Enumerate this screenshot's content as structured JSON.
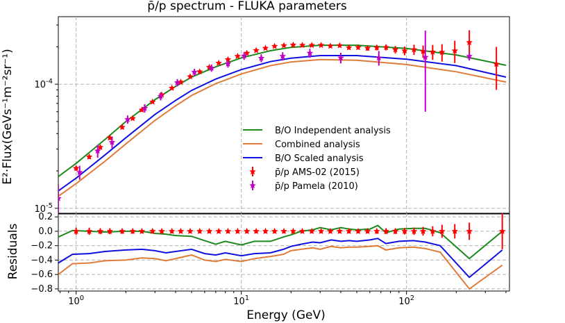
{
  "chart_data": {
    "type": "line",
    "title": "p̄/p spectrum - FLUKA parameters",
    "xlabel": "Energy (GeV)",
    "x_scale": "log",
    "xlim": [
      0.78,
      420
    ],
    "x_ticks": [
      {
        "value": 1,
        "label": "10^0"
      },
      {
        "value": 10,
        "label": "10^1"
      },
      {
        "value": 100,
        "label": "10^2"
      }
    ],
    "top": {
      "ylabel": "E²·Flux(GeVs⁻¹m⁻²sr⁻¹)",
      "y_scale": "log",
      "ylim": [
        9e-06,
        0.00035
      ],
      "y_ticks": [
        {
          "value": 1e-05,
          "label": "10^-5"
        },
        {
          "value": 0.0001,
          "label": "10^-4"
        }
      ],
      "series": [
        {
          "name": "B/O Independent analysis",
          "color": "#1a8a1a",
          "x": [
            0.78,
            1,
            1.5,
            2,
            3,
            4,
            5,
            7,
            10,
            15,
            20,
            30,
            50,
            100,
            200,
            400
          ],
          "y": [
            1.8e-05,
            2.3e-05,
            3.6e-05,
            5e-05,
            7.5e-05,
            9.6e-05,
            0.000114,
            0.000138,
            0.000163,
            0.000186,
            0.000198,
            0.000206,
            0.000206,
            0.000194,
            0.000172,
            0.000142
          ]
        },
        {
          "name": "Combined analysis",
          "color": "#e07b39",
          "x": [
            0.78,
            1,
            1.5,
            2,
            3,
            4,
            5,
            7,
            10,
            15,
            20,
            30,
            50,
            100,
            200,
            400
          ],
          "y": [
            1.25e-05,
            1.58e-05,
            2.4e-05,
            3.3e-05,
            5.1e-05,
            6.7e-05,
            8.1e-05,
            0.000101,
            0.000121,
            0.000141,
            0.000151,
            0.000158,
            0.000156,
            0.000144,
            0.000126,
            0.000104
          ]
        },
        {
          "name": "B/O Scaled analysis",
          "color": "#1010e0",
          "x": [
            0.78,
            1,
            1.5,
            2,
            3,
            4,
            5,
            7,
            10,
            15,
            20,
            30,
            50,
            100,
            200,
            400
          ],
          "y": [
            1.38e-05,
            1.75e-05,
            2.7e-05,
            3.7e-05,
            5.7e-05,
            7.4e-05,
            8.9e-05,
            0.00011,
            0.000131,
            0.000152,
            0.000162,
            0.00017,
            0.00017,
            0.000159,
            0.000141,
            0.000114
          ]
        }
      ],
      "data": [
        {
          "name": "p̄/p AMS-02 (2015)",
          "color": "#ff0000",
          "x": [
            1.0,
            1.2,
            1.4,
            1.6,
            1.9,
            2.2,
            2.5,
            2.9,
            3.3,
            3.8,
            4.3,
            4.9,
            5.6,
            6.4,
            7.3,
            8.3,
            9.5,
            10.8,
            12.3,
            14.0,
            15.9,
            18.1,
            20.6,
            23.4,
            26.7,
            30.4,
            34.6,
            39.4,
            44.8,
            51.0,
            58.1,
            66.1,
            75.2,
            85.6,
            97.4,
            111,
            126,
            144,
            164,
            196,
            240,
            350
          ],
          "y": [
            2.1e-05,
            2.6e-05,
            3.1e-05,
            3.7e-05,
            4.5e-05,
            5.3e-05,
            6.2e-05,
            7.2e-05,
            8.2e-05,
            9.3e-05,
            0.000104,
            0.000115,
            0.000126,
            0.000137,
            0.000148,
            0.000158,
            0.000168,
            0.000178,
            0.000187,
            0.000195,
            0.000202,
            0.000205,
            0.000207,
            0.000206,
            0.000206,
            0.000206,
            0.000203,
            0.000205,
            0.000197,
            0.000198,
            0.000195,
            0.000197,
            0.000198,
            0.00019,
            0.000186,
            0.00019,
            0.000184,
            0.000182,
            0.000181,
            0.000186,
            0.000217,
            0.000145
          ],
          "yerr": [
            1e-06,
            1.1e-06,
            1.2e-06,
            1.4e-06,
            1.6e-06,
            1.8e-06,
            2e-06,
            2.2e-06,
            2.4e-06,
            2.7e-06,
            3e-06,
            3.3e-06,
            3.6e-06,
            4e-06,
            4.2e-06,
            4.5e-06,
            4.8e-06,
            5e-06,
            5.3e-06,
            5.6e-06,
            6e-06,
            6e-06,
            6e-06,
            6e-06,
            6e-06,
            6e-06,
            6e-06,
            7e-06,
            7e-06,
            8e-06,
            9e-06,
            1e-05,
            1.1e-05,
            1.3e-05,
            1.5e-05,
            1.8e-05,
            2.1e-05,
            2.5e-05,
            2.9e-05,
            3.8e-05,
            5.5e-05,
            5.5e-05
          ]
        },
        {
          "name": "p̄/p Pamela (2010)",
          "color": "#c000c0",
          "x": [
            0.78,
            1.05,
            1.35,
            1.65,
            2.05,
            2.6,
            3.25,
            4.1,
            5.2,
            6.6,
            8.3,
            10.4,
            13.2,
            17.8,
            26.0,
            40.0,
            68.0,
            130.0,
            240.0
          ],
          "y": [
            1.2e-05,
            1.95e-05,
            2.9e-05,
            3.4e-05,
            5.2e-05,
            6.4e-05,
            8e-05,
            0.000103,
            0.000125,
            0.000135,
            0.000146,
            0.000169,
            0.000162,
            0.000168,
            0.000178,
            0.000163,
            0.000163,
            0.000165,
            0.000168
          ],
          "yerr": [
            3.5e-06,
            2.5e-06,
            3.5e-06,
            3.5e-06,
            4e-06,
            5e-06,
            6e-06,
            7e-06,
            8e-06,
            9e-06,
            1e-05,
            1.2e-05,
            1.2e-05,
            1.3e-05,
            1.5e-05,
            1.6e-05,
            2.2e-05,
            0.000105,
            1.3e-05
          ]
        }
      ]
    },
    "bottom": {
      "ylabel": "Residuals",
      "ylim": [
        -0.83,
        0.25
      ],
      "y_ticks": [
        {
          "value": 0.2,
          "label": "0.2"
        },
        {
          "value": 0.0,
          "label": "0.0"
        },
        {
          "value": -0.2,
          "label": "−0.2"
        },
        {
          "value": -0.4,
          "label": "−0.4"
        },
        {
          "value": -0.6,
          "label": "−0.6"
        },
        {
          "value": -0.8,
          "label": "−0.8"
        }
      ],
      "series": [
        {
          "name": "B/O Independent analysis",
          "color": "#1a8a1a",
          "x": [
            0.78,
            0.95,
            1.2,
            1.5,
            2.0,
            2.5,
            3.0,
            3.5,
            4.0,
            5.0,
            6.0,
            7.0,
            8.0,
            10.0,
            12.0,
            15.0,
            18.0,
            20.0,
            23.0,
            27.0,
            30.0,
            35.0,
            40.0,
            45.0,
            50.0,
            60.0,
            67.0,
            75.0,
            90.0,
            110.0,
            130.0,
            160.0,
            240.0,
            380.0
          ],
          "y": [
            -0.08,
            0.01,
            0.0,
            -0.01,
            0.0,
            0.0,
            -0.03,
            -0.04,
            -0.06,
            -0.07,
            -0.13,
            -0.18,
            -0.14,
            -0.19,
            -0.14,
            -0.14,
            -0.08,
            -0.05,
            0.0,
            0.02,
            0.05,
            0.02,
            0.05,
            0.03,
            0.02,
            0.03,
            0.08,
            -0.02,
            0.03,
            0.04,
            0.04,
            -0.02,
            -0.38,
            0.0
          ]
        },
        {
          "name": "Combined analysis",
          "color": "#e07b39",
          "x": [
            0.78,
            0.95,
            1.2,
            1.5,
            2.0,
            2.5,
            3.0,
            3.5,
            4.0,
            5.0,
            6.0,
            7.0,
            8.0,
            10.0,
            12.0,
            15.0,
            18.0,
            20.0,
            23.0,
            27.0,
            30.0,
            35.0,
            40.0,
            45.0,
            50.0,
            60.0,
            67.0,
            75.0,
            90.0,
            110.0,
            130.0,
            160.0,
            240.0,
            380.0
          ],
          "y": [
            -0.6,
            -0.45,
            -0.44,
            -0.41,
            -0.4,
            -0.37,
            -0.38,
            -0.41,
            -0.38,
            -0.33,
            -0.4,
            -0.42,
            -0.39,
            -0.42,
            -0.38,
            -0.35,
            -0.32,
            -0.27,
            -0.25,
            -0.23,
            -0.25,
            -0.21,
            -0.23,
            -0.22,
            -0.22,
            -0.21,
            -0.2,
            -0.26,
            -0.23,
            -0.22,
            -0.24,
            -0.29,
            -0.8,
            -0.47
          ]
        },
        {
          "name": "B/O Scaled analysis",
          "color": "#1010e0",
          "x": [
            0.78,
            0.95,
            1.2,
            1.5,
            2.0,
            2.5,
            3.0,
            3.5,
            4.0,
            5.0,
            6.0,
            7.0,
            8.0,
            10.0,
            12.0,
            15.0,
            18.0,
            20.0,
            23.0,
            27.0,
            30.0,
            35.0,
            40.0,
            45.0,
            50.0,
            60.0,
            67.0,
            75.0,
            90.0,
            110.0,
            130.0,
            160.0,
            240.0,
            380.0
          ],
          "y": [
            -0.44,
            -0.32,
            -0.31,
            -0.28,
            -0.26,
            -0.25,
            -0.27,
            -0.3,
            -0.28,
            -0.25,
            -0.31,
            -0.33,
            -0.3,
            -0.34,
            -0.31,
            -0.3,
            -0.25,
            -0.21,
            -0.18,
            -0.15,
            -0.16,
            -0.12,
            -0.14,
            -0.13,
            -0.14,
            -0.12,
            -0.1,
            -0.17,
            -0.14,
            -0.13,
            -0.15,
            -0.2,
            -0.64,
            -0.26
          ]
        }
      ],
      "data": [
        {
          "name": "p̄/p AMS-02 (2015)",
          "color": "#ff0000",
          "x": [
            1.0,
            1.2,
            1.4,
            1.6,
            1.9,
            2.2,
            2.5,
            2.9,
            3.3,
            3.8,
            4.3,
            4.9,
            5.6,
            6.4,
            7.3,
            8.3,
            9.5,
            10.8,
            12.3,
            14.0,
            15.9,
            18.1,
            20.6,
            23.4,
            26.7,
            30.4,
            34.6,
            39.4,
            44.8,
            51.0,
            58.1,
            66.1,
            75.2,
            85.6,
            97.4,
            111,
            126,
            144,
            164,
            196,
            240,
            380
          ],
          "y": [
            0.0,
            0.0,
            0.0,
            0.0,
            0.0,
            0.0,
            0.0,
            0.0,
            0.0,
            0.0,
            0.0,
            0.0,
            0.0,
            0.0,
            0.0,
            0.0,
            0.0,
            0.0,
            0.0,
            0.0,
            0.0,
            0.0,
            0.0,
            0.0,
            0.0,
            0.0,
            0.0,
            0.0,
            0.0,
            0.0,
            0.0,
            0.0,
            0.0,
            0.0,
            0.0,
            0.0,
            0.0,
            0.0,
            0.0,
            0.0,
            0.0,
            0.0
          ],
          "yerr": [
            0.05,
            0.05,
            0.04,
            0.04,
            0.035,
            0.035,
            0.03,
            0.03,
            0.03,
            0.03,
            0.028,
            0.028,
            0.028,
            0.028,
            0.028,
            0.028,
            0.028,
            0.028,
            0.028,
            0.028,
            0.028,
            0.028,
            0.028,
            0.028,
            0.028,
            0.028,
            0.03,
            0.03,
            0.03,
            0.03,
            0.03,
            0.035,
            0.04,
            0.04,
            0.045,
            0.05,
            0.06,
            0.07,
            0.09,
            0.1,
            0.12,
            0.25
          ]
        }
      ]
    },
    "legend": {
      "placement": "center-right",
      "entries": [
        {
          "label": "B/O Independent analysis",
          "color": "#1a8a1a",
          "kind": "line"
        },
        {
          "label": "Combined analysis",
          "color": "#e07b39",
          "kind": "line"
        },
        {
          "label": "B/O Scaled analysis",
          "color": "#1010e0",
          "kind": "line"
        },
        {
          "label": "p̄/p AMS-02 (2015)",
          "color": "#ff0000",
          "kind": "errorbar"
        },
        {
          "label": "p̄/p Pamela (2010)",
          "color": "#c000c0",
          "kind": "errorbar"
        }
      ]
    }
  }
}
